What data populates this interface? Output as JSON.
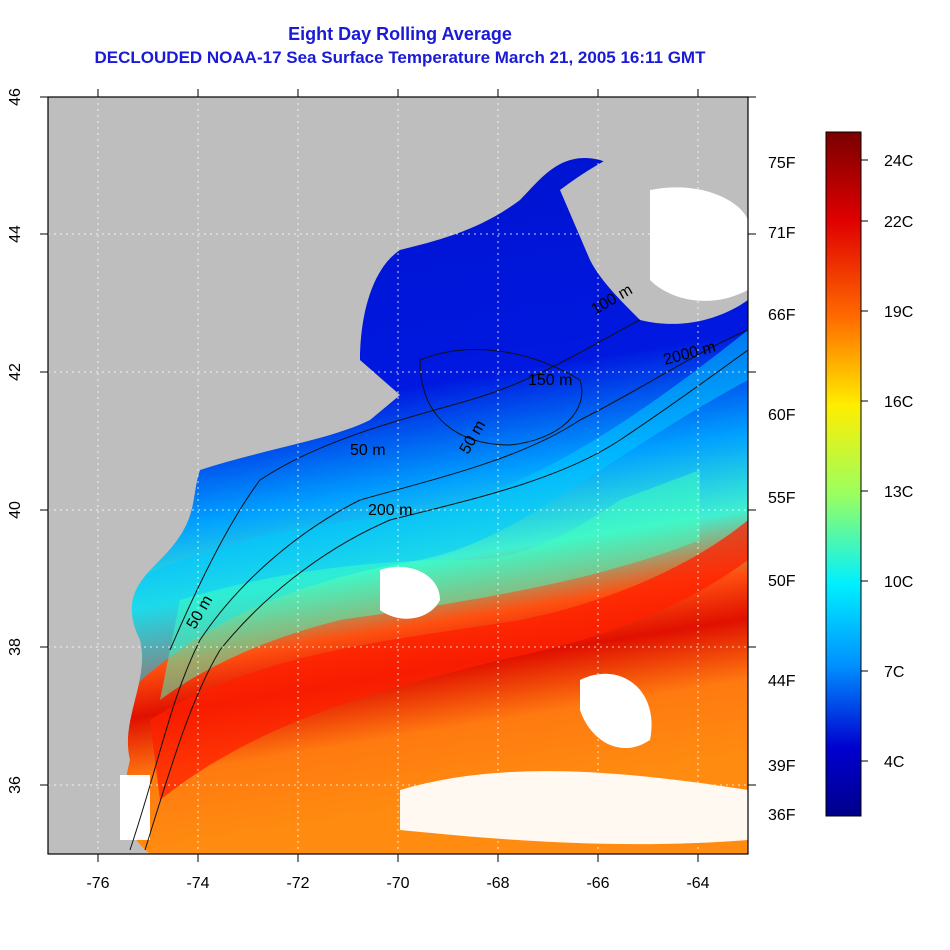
{
  "title": "Eight Day Rolling Average",
  "subtitle": "DECLOUDED NOAA-17 Sea Surface Temperature March 21, 2005 16:11 GMT",
  "map": {
    "lon_range": [
      -77,
      -63
    ],
    "lat_range": [
      35,
      46
    ],
    "x_ticks": [
      "-76",
      "-74",
      "-72",
      "-70",
      "-68",
      "-66",
      "-64"
    ],
    "y_ticks": [
      "36",
      "38",
      "40",
      "42",
      "44",
      "46"
    ],
    "contour_labels": [
      "50 m",
      "200 m",
      "2000 m",
      "50 m",
      "150 m",
      "50 m",
      "100 m"
    ],
    "land_color": "#bebebe",
    "cloud_color": "#ffffff"
  },
  "colorbar": {
    "celsius_labels": [
      "24C",
      "22C",
      "19C",
      "16C",
      "13C",
      "10C",
      "7C",
      "4C"
    ],
    "fahrenheit_labels": [
      "75F",
      "71F",
      "66F",
      "60F",
      "55F",
      "50F",
      "44F",
      "39F",
      "36F"
    ],
    "colors": [
      "#7a0000",
      "#e00000",
      "#ff6a00",
      "#ffee00",
      "#9aff60",
      "#00f0ff",
      "#0090ff",
      "#0000d0",
      "#00008a"
    ]
  }
}
